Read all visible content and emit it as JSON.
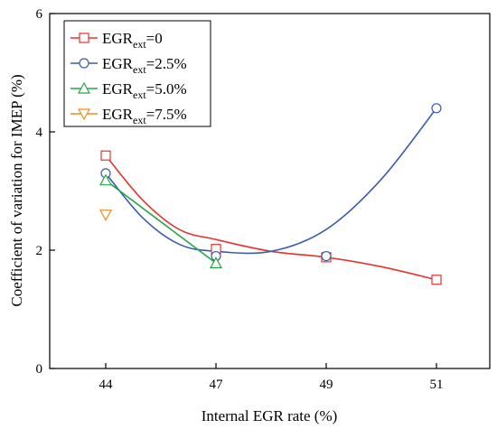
{
  "chart_data": {
    "type": "line",
    "title": "",
    "xlabel": "Internal EGR rate (%)",
    "ylabel": "Coefficient of variation for IMEP (%)",
    "categories": [
      "44",
      "47",
      "49",
      "51"
    ],
    "ylim": [
      0,
      6
    ],
    "yticks": [
      "0",
      "2",
      "4",
      "6"
    ],
    "grid": false,
    "legend_position": "top-left",
    "series": [
      {
        "name": "EGRext=0",
        "label_main": "EGR",
        "label_sub": "ext",
        "label_tail": "=0",
        "color": "#e8322d",
        "marker": "square",
        "points": [
          [
            44,
            3.6
          ],
          [
            47,
            2.02
          ],
          [
            49,
            1.88
          ],
          [
            51,
            1.5
          ]
        ]
      },
      {
        "name": "EGRext=2.5%",
        "label_main": "EGR",
        "label_sub": "ext",
        "label_tail": "=2.5%",
        "color": "#3a5dae",
        "marker": "circle",
        "points": [
          [
            44,
            3.3
          ],
          [
            47,
            1.9
          ],
          [
            49,
            1.9
          ],
          [
            51,
            4.4
          ]
        ]
      },
      {
        "name": "EGRext=5.0%",
        "label_main": "EGR",
        "label_sub": "ext",
        "label_tail": "=5.0%",
        "color": "#27a844",
        "marker": "triangle-up",
        "points": [
          [
            44,
            3.18
          ],
          [
            47,
            1.78
          ]
        ]
      },
      {
        "name": "EGRext=7.5%",
        "label_main": "EGR",
        "label_sub": "ext",
        "label_tail": "=7.5%",
        "color": "#f08c1e",
        "marker": "triangle-down",
        "points": [
          [
            44,
            2.6
          ]
        ]
      }
    ],
    "fit_curves": [
      {
        "series": "EGRext=0",
        "points": [
          [
            44,
            3.6
          ],
          [
            45,
            2.85
          ],
          [
            46,
            2.35
          ],
          [
            47,
            2.18
          ],
          [
            48,
            1.98
          ],
          [
            49,
            1.88
          ],
          [
            50,
            1.72
          ],
          [
            51,
            1.5
          ]
        ]
      },
      {
        "series": "EGRext=2.5%",
        "points": [
          [
            44,
            3.3
          ],
          [
            45,
            2.55
          ],
          [
            46,
            2.1
          ],
          [
            47,
            1.98
          ],
          [
            48,
            1.98
          ],
          [
            49,
            2.35
          ],
          [
            50,
            3.2
          ],
          [
            51,
            4.4
          ]
        ]
      },
      {
        "series": "EGRext=5.0%",
        "points": [
          [
            44,
            3.18
          ],
          [
            47,
            1.78
          ]
        ]
      }
    ]
  }
}
